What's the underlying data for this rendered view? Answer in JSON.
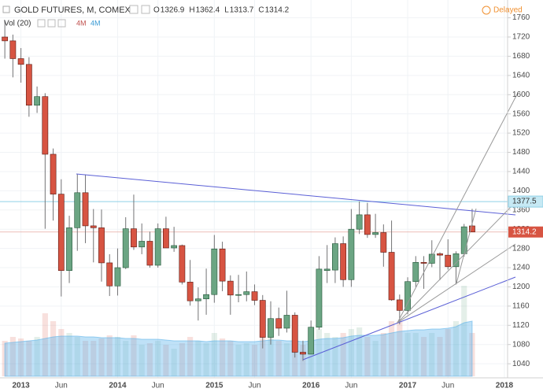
{
  "chart_data": {
    "type": "candlestick",
    "title": "GOLD FUTURES, M, COMEX",
    "ohlc_labels": [
      "O",
      "H",
      "L",
      "C"
    ],
    "ohlc_values": [
      1326.9,
      1362.4,
      1313.7,
      1314.2
    ],
    "volume_label": "Vol (20)",
    "volume_readouts": [
      "4M",
      "4M"
    ],
    "status": "Delayed",
    "xlim": [
      -0.6,
      62.4
    ],
    "xticks": [
      {
        "value": 2,
        "label": "2013"
      },
      {
        "value": 7,
        "label": "Jun"
      },
      {
        "value": 14,
        "label": "2014"
      },
      {
        "value": 19,
        "label": "Jun"
      },
      {
        "value": 26,
        "label": "2015"
      },
      {
        "value": 31,
        "label": "Jun"
      },
      {
        "value": 38,
        "label": "2016"
      },
      {
        "value": 43,
        "label": "Jun"
      },
      {
        "value": 50,
        "label": "2017"
      },
      {
        "value": 55,
        "label": "Jun"
      },
      {
        "value": 62,
        "label": "2018"
      }
    ],
    "ylim": [
      1014,
      1797
    ],
    "yticks": [
      1040,
      1080,
      1120,
      1160,
      1200,
      1240,
      1280,
      1320,
      1360,
      1400,
      1440,
      1480,
      1520,
      1560,
      1600,
      1640,
      1680,
      1720,
      1760
    ],
    "grid": true,
    "up_color": "#6ba583",
    "down_color": "#d75442",
    "open": [
      1720,
      1712,
      1675,
      1663,
      1578,
      1596,
      1476,
      1393,
      1234,
      1323,
      1396,
      1327,
      1323,
      1250,
      1202,
      1240,
      1321,
      1283,
      1295,
      1245,
      1321,
      1281,
      1286,
      1210,
      1171,
      1175,
      1184,
      1279,
      1212,
      1183,
      1184,
      1190,
      1172,
      1095,
      1134,
      1114,
      1141,
      1064,
      1060,
      1116,
      1234,
      1235,
      1290,
      1215,
      1320,
      1350,
      1309,
      1313,
      1272,
      1173,
      1151,
      1211,
      1251,
      1249,
      1269,
      1266,
      1242,
      1269,
      1326.9
    ],
    "high": [
      1755,
      1725,
      1697,
      1678,
      1617,
      1603,
      1488,
      1424,
      1348,
      1434,
      1434,
      1362,
      1361,
      1268,
      1280,
      1345,
      1392,
      1332,
      1315,
      1332,
      1346,
      1325,
      1288,
      1256,
      1199,
      1238,
      1308,
      1294,
      1224,
      1225,
      1232,
      1205,
      1183,
      1170,
      1157,
      1192,
      1147,
      1088,
      1130,
      1264,
      1287,
      1303,
      1305,
      1362,
      1378,
      1375,
      1352,
      1330,
      1338,
      1184,
      1220,
      1264,
      1264,
      1297,
      1272,
      1299,
      1274,
      1331,
      1362.4
    ],
    "low": [
      1675,
      1636,
      1625,
      1554,
      1562,
      1321,
      1338,
      1180,
      1208,
      1275,
      1291,
      1251,
      1211,
      1181,
      1182,
      1237,
      1277,
      1268,
      1240,
      1240,
      1281,
      1273,
      1205,
      1161,
      1130,
      1142,
      1167,
      1191,
      1142,
      1168,
      1170,
      1162,
      1072,
      1080,
      1098,
      1105,
      1053,
      1046,
      1062,
      1111,
      1208,
      1208,
      1200,
      1200,
      1310,
      1302,
      1302,
      1242,
      1171,
      1122,
      1143,
      1200,
      1196,
      1241,
      1214,
      1236,
      1205,
      1263,
      1313.7
    ],
    "close": [
      1712,
      1675,
      1663,
      1578,
      1596,
      1476,
      1393,
      1234,
      1323,
      1396,
      1327,
      1323,
      1250,
      1202,
      1240,
      1321,
      1283,
      1295,
      1245,
      1321,
      1281,
      1286,
      1210,
      1171,
      1175,
      1184,
      1279,
      1212,
      1183,
      1184,
      1190,
      1172,
      1095,
      1134,
      1114,
      1141,
      1064,
      1060,
      1116,
      1237,
      1237,
      1290,
      1215,
      1320,
      1350,
      1309,
      1313,
      1272,
      1173,
      1151,
      1211,
      1251,
      1249,
      1268,
      1266,
      1242,
      1269,
      1325,
      1314.2
    ],
    "volume": [
      45,
      50,
      48,
      45,
      50,
      80,
      70,
      60,
      55,
      50,
      45,
      45,
      48,
      52,
      50,
      45,
      52,
      40,
      42,
      45,
      40,
      35,
      42,
      50,
      45,
      42,
      55,
      48,
      45,
      40,
      42,
      40,
      50,
      55,
      45,
      42,
      50,
      40,
      45,
      60,
      55,
      50,
      55,
      60,
      62,
      50,
      45,
      55,
      70,
      70,
      55,
      55,
      50,
      55,
      50,
      60,
      70,
      115,
      55
    ],
    "volume_ma": [
      42,
      43,
      44,
      45,
      46,
      48,
      50,
      51,
      51,
      51,
      50,
      50,
      49,
      49,
      49,
      48,
      48,
      47,
      47,
      47,
      46,
      45,
      45,
      45,
      45,
      44,
      45,
      45,
      45,
      44,
      44,
      44,
      45,
      46,
      46,
      45,
      45,
      44,
      45,
      47,
      48,
      48,
      49,
      51,
      52,
      52,
      52,
      53,
      55,
      57,
      58,
      59,
      59,
      60,
      60,
      61,
      63,
      68,
      70
    ],
    "alert_line": 1377.5,
    "last_price": 1314.2
  }
}
